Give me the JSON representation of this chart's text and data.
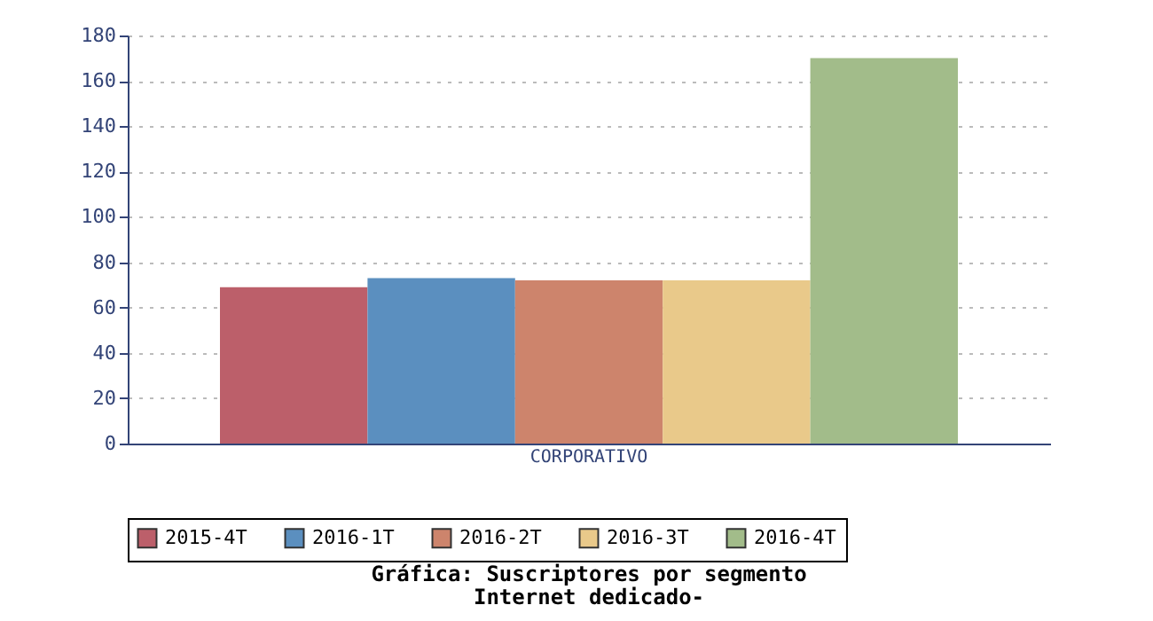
{
  "chart_data": {
    "type": "bar",
    "title": "Gráfica: Suscriptores por segmento",
    "subtitle": "Internet dedicado-",
    "categories": [
      "CORPORATIVO"
    ],
    "series": [
      {
        "name": "2015-4T",
        "color": "#bc5f6a",
        "values": [
          69
        ]
      },
      {
        "name": "2016-1T",
        "color": "#5b8fbf",
        "values": [
          73
        ]
      },
      {
        "name": "2016-2T",
        "color": "#cd846c",
        "values": [
          72
        ]
      },
      {
        "name": "2016-3T",
        "color": "#e9c98a",
        "values": [
          72
        ]
      },
      {
        "name": "2016-4T",
        "color": "#a2bc8a",
        "values": [
          170
        ]
      }
    ],
    "ylim": [
      0,
      180
    ],
    "yticks": [
      0,
      20,
      40,
      60,
      80,
      100,
      120,
      140,
      160,
      180
    ],
    "grid": "y",
    "legend": "bottom"
  }
}
